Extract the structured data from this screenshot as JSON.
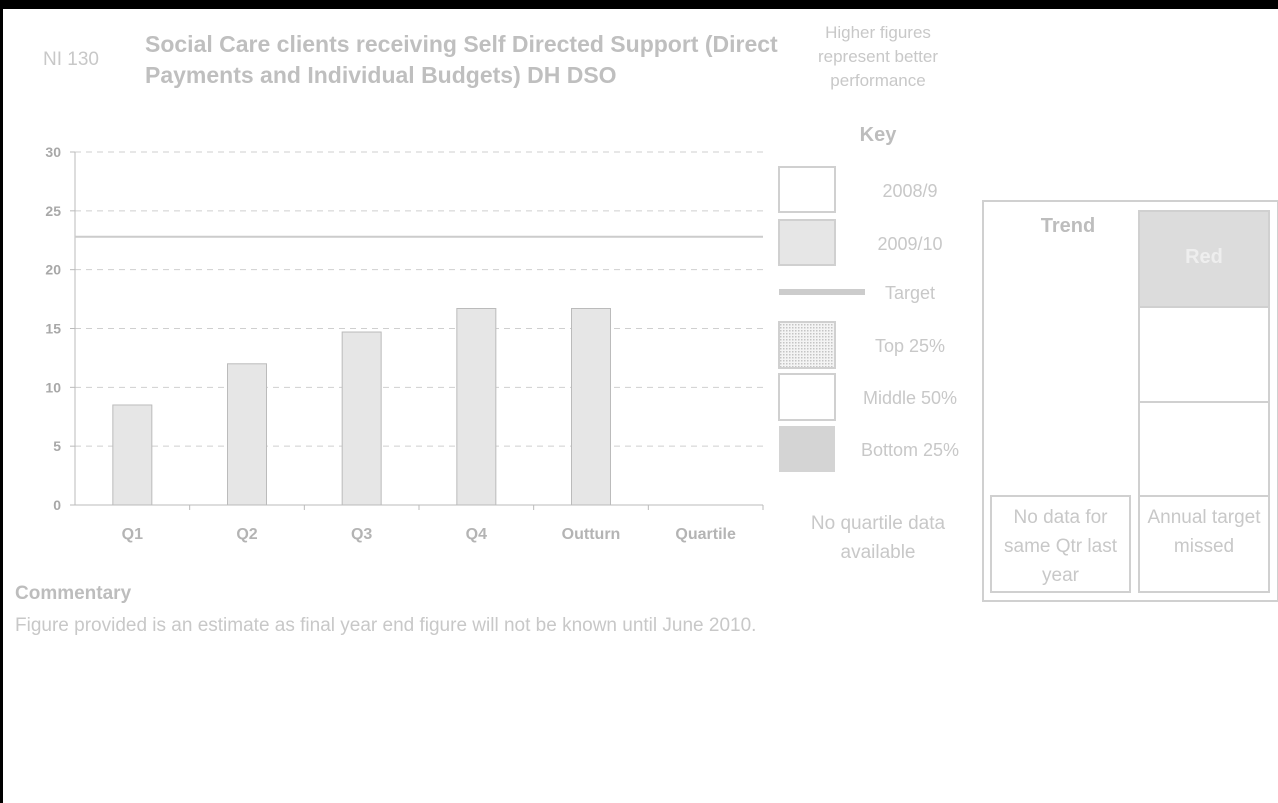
{
  "indicator": "NI 130",
  "performance_note": "Higher figures represent better performance",
  "chart_data": {
    "type": "bar",
    "title": "Social Care clients receiving Self Directed Support (Direct Payments and Individual Budgets) DH DSO",
    "categories": [
      "Q1",
      "Q2",
      "Q3",
      "Q4",
      "Outturn",
      "Quartile"
    ],
    "series": [
      {
        "name": "2008/9",
        "color": "#ffffff",
        "values": [
          null,
          null,
          null,
          null,
          null,
          null
        ]
      },
      {
        "name": "2009/10",
        "color": "#e6e6e6",
        "values": [
          8.5,
          12,
          14.7,
          16.7,
          16.7,
          null
        ]
      }
    ],
    "target": {
      "name": "Target",
      "value": 22.8,
      "color": "#cccccc"
    },
    "ylim": [
      0,
      30
    ],
    "yticks": [
      0,
      5,
      10,
      15,
      20,
      25,
      30
    ],
    "grid": true
  },
  "key": {
    "title": "Key",
    "quartiles": [
      {
        "name": "Top 25%",
        "color": "#e0e0e0"
      },
      {
        "name": "Middle 50%",
        "color": "#ffffff"
      },
      {
        "name": "Bottom 25%",
        "color": "#d4d4d4"
      }
    ],
    "quartile_note": "No quartile data available"
  },
  "trend": {
    "title": "Trend",
    "status": "Red",
    "trend_note": "No data for same Qtr last year",
    "target_note": "Annual target missed"
  },
  "commentary": {
    "heading": "Commentary",
    "text": "Figure provided is an estimate as final year end figure will not be known until June 2010."
  }
}
